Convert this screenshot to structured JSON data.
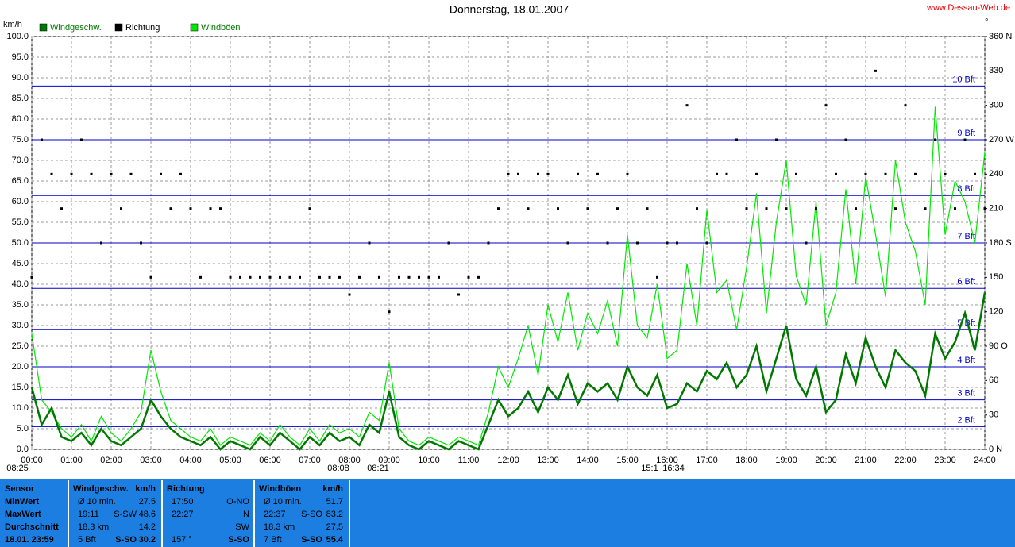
{
  "chart_data": {
    "type": "line",
    "title": "Donnerstag, 18.01.2007",
    "source": "www.Dessau-Web.de",
    "y_label": "km/h",
    "y2_label": "°",
    "x": [
      0,
      0.25,
      0.5,
      0.75,
      1,
      1.25,
      1.5,
      1.75,
      2,
      2.25,
      2.5,
      2.75,
      3,
      3.25,
      3.5,
      3.75,
      4,
      4.25,
      4.5,
      4.75,
      5,
      5.25,
      5.5,
      5.75,
      6,
      6.25,
      6.5,
      6.75,
      7,
      7.25,
      7.5,
      7.75,
      8,
      8.25,
      8.5,
      8.75,
      9,
      9.25,
      9.5,
      9.75,
      10,
      10.25,
      10.5,
      10.75,
      11,
      11.25,
      11.5,
      11.75,
      12,
      12.25,
      12.5,
      12.75,
      13,
      13.25,
      13.5,
      13.75,
      14,
      14.25,
      14.5,
      14.75,
      15,
      15.25,
      15.5,
      15.75,
      16,
      16.25,
      16.5,
      16.75,
      17,
      17.25,
      17.5,
      17.75,
      18,
      18.25,
      18.5,
      18.75,
      19,
      19.25,
      19.5,
      19.75,
      20,
      20.25,
      20.5,
      20.75,
      21,
      21.25,
      21.5,
      21.75,
      22,
      22.25,
      22.5,
      22.75,
      23,
      23.25,
      23.5,
      23.75,
      24
    ],
    "series": [
      {
        "name": "Windgeschw.",
        "color": "#007800",
        "values": [
          15,
          6,
          10,
          3,
          2,
          4,
          1,
          5,
          2,
          1,
          3,
          5,
          12,
          8,
          5,
          3,
          2,
          1,
          3,
          0,
          2,
          1,
          0,
          3,
          1,
          4,
          2,
          0,
          3,
          1,
          4,
          2,
          3,
          1,
          6,
          4,
          14,
          3,
          1,
          0,
          2,
          1,
          0,
          2,
          1,
          0,
          6,
          12,
          8,
          10,
          14,
          9,
          15,
          12,
          18,
          11,
          16,
          14,
          16,
          12,
          20,
          15,
          13,
          18,
          10,
          11,
          16,
          14,
          19,
          17,
          21,
          15,
          18,
          25,
          14,
          22,
          30,
          17,
          13,
          20,
          9,
          12,
          23,
          16,
          27,
          20,
          15,
          24,
          21,
          19,
          13,
          28,
          22,
          26,
          33,
          24,
          38
        ]
      },
      {
        "name": "Richtung",
        "color": "#000000",
        "axis": "y2",
        "values": [
          150,
          270,
          240,
          210,
          240,
          270,
          240,
          180,
          240,
          210,
          240,
          180,
          150,
          240,
          210,
          240,
          210,
          150,
          210,
          210,
          150,
          150,
          150,
          150,
          150,
          150,
          150,
          150,
          210,
          150,
          150,
          150,
          135,
          150,
          180,
          150,
          120,
          150,
          150,
          150,
          150,
          150,
          180,
          135,
          150,
          150,
          180,
          210,
          240,
          240,
          210,
          240,
          240,
          210,
          180,
          240,
          210,
          240,
          180,
          210,
          240,
          180,
          210,
          150,
          180,
          180,
          300,
          210,
          180,
          240,
          240,
          270,
          210,
          240,
          210,
          270,
          210,
          240,
          180,
          210,
          300,
          240,
          270,
          210,
          240,
          330,
          240,
          210,
          300,
          240,
          210,
          270,
          240,
          210,
          270,
          240,
          210
        ]
      },
      {
        "name": "Windböen",
        "color": "#00e800",
        "values": [
          28,
          12,
          9,
          5,
          3,
          6,
          2,
          8,
          4,
          2,
          5,
          9,
          24,
          14,
          7,
          5,
          3,
          2,
          5,
          1,
          3,
          2,
          1,
          4,
          2,
          6,
          3,
          1,
          5,
          2,
          6,
          4,
          5,
          3,
          9,
          7,
          21,
          5,
          2,
          1,
          3,
          2,
          1,
          3,
          2,
          1,
          9,
          20,
          15,
          22,
          30,
          18,
          35,
          26,
          38,
          24,
          33,
          28,
          36,
          25,
          52,
          30,
          27,
          40,
          22,
          24,
          45,
          30,
          58,
          38,
          41,
          29,
          44,
          62,
          33,
          55,
          70,
          42,
          35,
          60,
          30,
          38,
          63,
          40,
          66,
          52,
          37,
          70,
          55,
          48,
          35,
          83,
          52,
          65,
          60,
          50,
          72
        ]
      }
    ],
    "xlim": [
      0,
      24
    ],
    "xticks": [
      {
        "value": 0,
        "label": "00:00"
      },
      {
        "value": 1,
        "label": "01:00"
      },
      {
        "value": 2,
        "label": "02:00"
      },
      {
        "value": 3,
        "label": "03:00"
      },
      {
        "value": 4,
        "label": "04:00"
      },
      {
        "value": 5,
        "label": "05:00"
      },
      {
        "value": 6,
        "label": "06:00"
      },
      {
        "value": 7,
        "label": "07:00"
      },
      {
        "value": 8,
        "label": "08:00"
      },
      {
        "value": 9,
        "label": "09:00"
      },
      {
        "value": 10,
        "label": "10:00"
      },
      {
        "value": 11,
        "label": "11:00"
      },
      {
        "value": 12,
        "label": "12:00"
      },
      {
        "value": 13,
        "label": "13:00"
      },
      {
        "value": 14,
        "label": "14:00"
      },
      {
        "value": 15,
        "label": "15:00"
      },
      {
        "value": 16,
        "label": "16:00"
      },
      {
        "value": 17,
        "label": "17:00"
      },
      {
        "value": 18,
        "label": "18:00"
      },
      {
        "value": 19,
        "label": "19:00"
      },
      {
        "value": 20,
        "label": "20:00"
      },
      {
        "value": 21,
        "label": "21:00"
      },
      {
        "value": 22,
        "label": "22:00"
      },
      {
        "value": 23,
        "label": "23:00"
      },
      {
        "value": 24,
        "label": "24:00"
      }
    ],
    "ylim": [
      0,
      100
    ],
    "yticks": [
      {
        "value": 0,
        "label": "0.0"
      },
      {
        "value": 5,
        "label": "5.0"
      },
      {
        "value": 10,
        "label": "10.0"
      },
      {
        "value": 15,
        "label": "15.0"
      },
      {
        "value": 20,
        "label": "20.0"
      },
      {
        "value": 25,
        "label": "25.0"
      },
      {
        "value": 30,
        "label": "30.0"
      },
      {
        "value": 35,
        "label": "35.0"
      },
      {
        "value": 40,
        "label": "40.0"
      },
      {
        "value": 45,
        "label": "45.0"
      },
      {
        "value": 50,
        "label": "50.0"
      },
      {
        "value": 55,
        "label": "55.0"
      },
      {
        "value": 60,
        "label": "60.0"
      },
      {
        "value": 65,
        "label": "65.0"
      },
      {
        "value": 70,
        "label": "70.0"
      },
      {
        "value": 75,
        "label": "75.0"
      },
      {
        "value": 80,
        "label": "80.0"
      },
      {
        "value": 85,
        "label": "85.0"
      },
      {
        "value": 90,
        "label": "90.0"
      },
      {
        "value": 95,
        "label": "95.0"
      },
      {
        "value": 100,
        "label": "100.0"
      }
    ],
    "y2lim": [
      0,
      360
    ],
    "y2ticks": [
      {
        "value": 0,
        "label": "0 N"
      },
      30,
      60,
      {
        "value": 90,
        "label": "90 O"
      },
      120,
      150,
      {
        "value": 180,
        "label": "180 S"
      },
      210,
      240,
      {
        "value": 270,
        "label": "270 W"
      },
      300,
      330,
      {
        "value": 360,
        "label": "360 N"
      }
    ],
    "bft_lines": [
      {
        "value": 5.5,
        "label": "2 Bft"
      },
      {
        "value": 12,
        "label": "3 Bft"
      },
      {
        "value": 20,
        "label": "4 Bft"
      },
      {
        "value": 29,
        "label": "5 Bft"
      },
      {
        "value": 39,
        "label": "6 Bft"
      },
      {
        "value": 50,
        "label": "7 Bft"
      },
      {
        "value": 61.5,
        "label": "8 Bft"
      },
      {
        "value": 75,
        "label": "9 Bft"
      },
      {
        "value": 88,
        "label": "10 Bft"
      }
    ],
    "annotations": [
      "08:25",
      "08:08",
      "08:21",
      "15:1",
      "16:34"
    ],
    "grid": true,
    "legend": "top-left"
  },
  "stats": {
    "labels": [
      "Sensor",
      "MinWert",
      "MaxWert",
      "Durchschnitt",
      "18.01. 23:59"
    ],
    "columns": [
      {
        "title": "Windgeschw.",
        "unit": "km/h",
        "rows": [
          {
            "time": "Ø 10 min.",
            "value": "27.5"
          },
          {
            "time": "19:11",
            "dir": "S-SW",
            "value": "48.6"
          },
          {
            "time": "18.3 km",
            "value": "14.2"
          },
          {
            "time": "5 Bft",
            "dir": "S-SO",
            "value": "30.2"
          }
        ]
      },
      {
        "title": "Richtung",
        "rows": [
          {
            "time": "17:50",
            "dir": "O-NO"
          },
          {
            "time": "22:27",
            "dir": "N"
          },
          {
            "dir": "SW"
          },
          {
            "time": "157 °",
            "dir": "S-SO"
          }
        ]
      },
      {
        "title": "Windböen",
        "unit": "km/h",
        "rows": [
          {
            "time": "Ø 10 min.",
            "value": "51.7"
          },
          {
            "time": "22:37",
            "dir": "S-SO",
            "value": "83.2"
          },
          {
            "time": "18.3 km",
            "value": "27.5"
          },
          {
            "time": "7 Bft",
            "dir": "S-SO",
            "value": "55.4"
          }
        ]
      }
    ]
  }
}
